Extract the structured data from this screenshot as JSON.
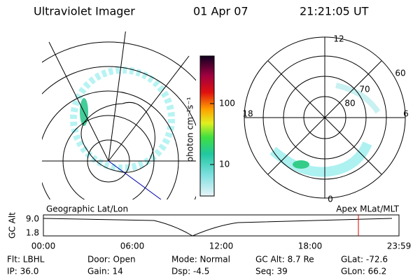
{
  "header": {
    "title": "Ultraviolet Imager",
    "date": "01 Apr 07",
    "time": "21:21:05 UT"
  },
  "colorbar": {
    "label": "photon cm⁻²s⁻¹",
    "ticks": [
      "100",
      "10"
    ]
  },
  "polar": {
    "mlt_labels": [
      "12",
      "18",
      "6",
      "0"
    ],
    "lat_labels": [
      "60",
      "70",
      "80"
    ]
  },
  "timeline": {
    "left_label": "Geographic Lat/Lon",
    "right_label": "Apex MLat/MLT",
    "y_title": "GC Alt",
    "y_ticks": [
      "9.0",
      "1.8"
    ],
    "x_ticks": [
      "00:00",
      "06:00",
      "12:00",
      "18:00",
      "23:59"
    ]
  },
  "footer": {
    "rows": [
      [
        "Flt: LBHL",
        "Door: Open",
        "Mode: Normal",
        "GC Alt: 8.7 Re",
        "GLat: -72.6"
      ],
      [
        "IP: 36.0",
        "Gain: 14",
        "Dsp: -4.5",
        "Seq: 39",
        "GLon: 66.2"
      ]
    ]
  }
}
